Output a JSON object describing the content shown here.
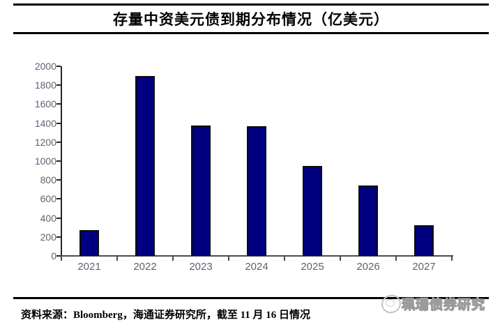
{
  "title": {
    "text": "存量中资美元债到期分布情况（亿美元）"
  },
  "chart_data": {
    "type": "bar",
    "title": "存量中资美元债到期分布情况（亿美元）",
    "categories": [
      "2021",
      "2022",
      "2023",
      "2024",
      "2025",
      "2026",
      "2027"
    ],
    "values": [
      270,
      1900,
      1375,
      1365,
      950,
      740,
      320
    ],
    "xlabel": "",
    "ylabel": "",
    "ylim": [
      0,
      2000
    ],
    "yticks": [
      0,
      200,
      400,
      600,
      800,
      1000,
      1200,
      1400,
      1600,
      1800,
      2000
    ],
    "grid": false,
    "legend": "none",
    "bar_color": "#000080",
    "bar_border_color": "#0d0d0d",
    "axis_label_color": "#5a6473"
  },
  "footer": {
    "source_text": "资料来源：Bloomberg，海通证券研究所，截至 11 月 16 日情况"
  },
  "watermark": {
    "text": "珮珊债券研究",
    "logo": "scribble-circle-logo"
  },
  "colors": {
    "bar": "#000080",
    "accent_line": "#000000",
    "axis_label": "#5a6473"
  }
}
